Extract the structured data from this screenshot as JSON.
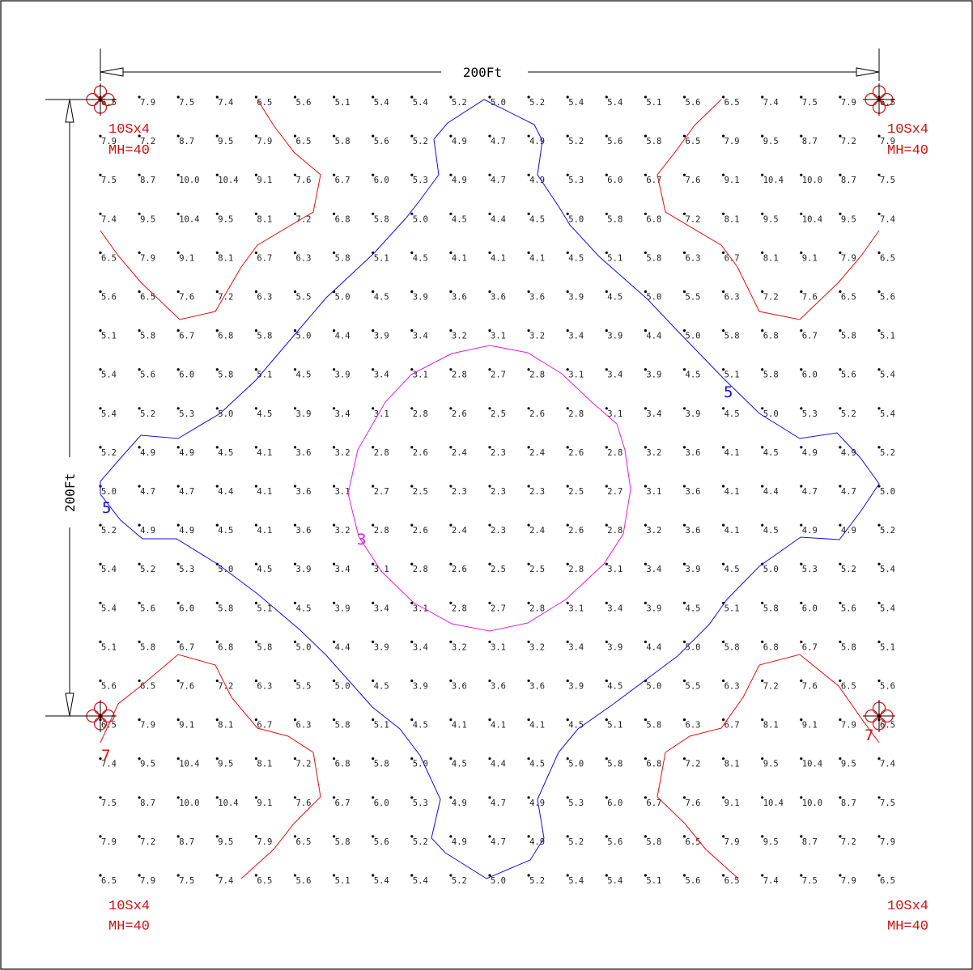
{
  "dimensions": {
    "width_label": "200Ft",
    "height_label": "200Ft"
  },
  "fixtures": [
    {
      "name": "fixture-top-left",
      "type_label": "10Sx4",
      "mh_label": "MH=40"
    },
    {
      "name": "fixture-top-right",
      "type_label": "10Sx4",
      "mh_label": "MH=40"
    },
    {
      "name": "fixture-bottom-left",
      "type_label": "10Sx4",
      "mh_label": "MH=40"
    },
    {
      "name": "fixture-bottom-right",
      "type_label": "10Sx4",
      "mh_label": "MH=40"
    }
  ],
  "contours": [
    {
      "level": "3",
      "color": "#e020e0"
    },
    {
      "level": "5",
      "color": "#1010e0"
    },
    {
      "level": "7",
      "color": "#e01010"
    }
  ],
  "colors": {
    "fixture": "#cc1111",
    "grid_value": "#222222",
    "frame": "#000000"
  },
  "grid_values": [
    [
      "6.5",
      "7.9",
      "7.5",
      "7.4",
      "6.5",
      "5.6",
      "5.1",
      "5.4",
      "5.4",
      "5.2",
      "5.0",
      "5.2",
      "5.4",
      "5.4",
      "5.1",
      "5.6",
      "6.5",
      "7.4",
      "7.5",
      "7.9",
      "6.5"
    ],
    [
      "7.9",
      "7.2",
      "8.7",
      "9.5",
      "7.9",
      "6.5",
      "5.8",
      "5.6",
      "5.2",
      "4.9",
      "4.7",
      "4.9",
      "5.2",
      "5.6",
      "5.8",
      "6.5",
      "7.9",
      "9.5",
      "8.7",
      "7.2",
      "7.9"
    ],
    [
      "7.5",
      "8.7",
      "10.0",
      "10.4",
      "9.1",
      "7.6",
      "6.7",
      "6.0",
      "5.3",
      "4.9",
      "4.7",
      "4.9",
      "5.3",
      "6.0",
      "6.7",
      "7.6",
      "9.1",
      "10.4",
      "10.0",
      "8.7",
      "7.5"
    ],
    [
      "7.4",
      "9.5",
      "10.4",
      "9.5",
      "8.1",
      "7.2",
      "6.8",
      "5.8",
      "5.0",
      "4.5",
      "4.4",
      "4.5",
      "5.0",
      "5.8",
      "6.8",
      "7.2",
      "8.1",
      "9.5",
      "10.4",
      "9.5",
      "7.4"
    ],
    [
      "6.5",
      "7.9",
      "9.1",
      "8.1",
      "6.7",
      "6.3",
      "5.8",
      "5.1",
      "4.5",
      "4.1",
      "4.1",
      "4.1",
      "4.5",
      "5.1",
      "5.8",
      "6.3",
      "6.7",
      "8.1",
      "9.1",
      "7.9",
      "6.5"
    ],
    [
      "5.6",
      "6.5",
      "7.6",
      "7.2",
      "6.3",
      "5.5",
      "5.0",
      "4.5",
      "3.9",
      "3.6",
      "3.6",
      "3.6",
      "3.9",
      "4.5",
      "5.0",
      "5.5",
      "6.3",
      "7.2",
      "7.6",
      "6.5",
      "5.6"
    ],
    [
      "5.1",
      "5.8",
      "6.7",
      "6.8",
      "5.8",
      "5.0",
      "4.4",
      "3.9",
      "3.4",
      "3.2",
      "3.1",
      "3.2",
      "3.4",
      "3.9",
      "4.4",
      "5.0",
      "5.8",
      "6.8",
      "6.7",
      "5.8",
      "5.1"
    ],
    [
      "5.4",
      "5.6",
      "6.0",
      "5.8",
      "5.1",
      "4.5",
      "3.9",
      "3.4",
      "3.1",
      "2.8",
      "2.7",
      "2.8",
      "3.1",
      "3.4",
      "3.9",
      "4.5",
      "5.1",
      "5.8",
      "6.0",
      "5.6",
      "5.4"
    ],
    [
      "5.4",
      "5.2",
      "5.3",
      "5.0",
      "4.5",
      "3.9",
      "3.4",
      "3.1",
      "2.8",
      "2.6",
      "2.5",
      "2.6",
      "2.8",
      "3.1",
      "3.4",
      "3.9",
      "4.5",
      "5.0",
      "5.3",
      "5.2",
      "5.4"
    ],
    [
      "5.2",
      "4.9",
      "4.9",
      "4.5",
      "4.1",
      "3.6",
      "3.2",
      "2.8",
      "2.6",
      "2.4",
      "2.3",
      "2.4",
      "2.6",
      "2.8",
      "3.2",
      "3.6",
      "4.1",
      "4.5",
      "4.9",
      "4.9",
      "5.2"
    ],
    [
      "5.0",
      "4.7",
      "4.7",
      "4.4",
      "4.1",
      "3.6",
      "3.1",
      "2.7",
      "2.5",
      "2.3",
      "2.3",
      "2.3",
      "2.5",
      "2.7",
      "3.1",
      "3.6",
      "4.1",
      "4.4",
      "4.7",
      "4.7",
      "5.0"
    ],
    [
      "5.2",
      "4.9",
      "4.9",
      "4.5",
      "4.1",
      "3.6",
      "3.2",
      "2.8",
      "2.6",
      "2.4",
      "2.3",
      "2.4",
      "2.6",
      "2.8",
      "3.2",
      "3.6",
      "4.1",
      "4.5",
      "4.9",
      "4.9",
      "5.2"
    ],
    [
      "5.4",
      "5.2",
      "5.3",
      "5.0",
      "4.5",
      "3.9",
      "3.4",
      "3.1",
      "2.8",
      "2.6",
      "2.5",
      "2.5",
      "2.8",
      "3.1",
      "3.4",
      "3.9",
      "4.5",
      "5.0",
      "5.3",
      "5.2",
      "5.4"
    ],
    [
      "5.4",
      "5.6",
      "6.0",
      "5.8",
      "5.1",
      "4.5",
      "3.9",
      "3.4",
      "3.1",
      "2.8",
      "2.7",
      "2.8",
      "3.1",
      "3.4",
      "3.9",
      "4.5",
      "5.1",
      "5.8",
      "6.0",
      "5.6",
      "5.4"
    ],
    [
      "5.1",
      "5.8",
      "6.7",
      "6.8",
      "5.8",
      "5.0",
      "4.4",
      "3.9",
      "3.4",
      "3.2",
      "3.1",
      "3.2",
      "3.4",
      "3.9",
      "4.4",
      "5.0",
      "5.8",
      "6.8",
      "6.7",
      "5.8",
      "5.1"
    ],
    [
      "5.6",
      "6.5",
      "7.6",
      "7.2",
      "6.3",
      "5.5",
      "5.0",
      "4.5",
      "3.9",
      "3.6",
      "3.6",
      "3.6",
      "3.9",
      "4.5",
      "5.0",
      "5.5",
      "6.3",
      "7.2",
      "7.6",
      "6.5",
      "5.6"
    ],
    [
      "6.5",
      "7.9",
      "9.1",
      "8.1",
      "6.7",
      "6.3",
      "5.8",
      "5.1",
      "4.5",
      "4.1",
      "4.1",
      "4.1",
      "4.5",
      "5.1",
      "5.8",
      "6.3",
      "6.7",
      "8.1",
      "9.1",
      "7.9",
      "6.5"
    ],
    [
      "7.4",
      "9.5",
      "10.4",
      "9.5",
      "8.1",
      "7.2",
      "6.8",
      "5.8",
      "5.0",
      "4.5",
      "4.4",
      "4.5",
      "5.0",
      "5.8",
      "6.8",
      "7.2",
      "8.1",
      "9.5",
      "10.4",
      "9.5",
      "7.4"
    ],
    [
      "7.5",
      "8.7",
      "10.0",
      "10.4",
      "9.1",
      "7.6",
      "6.7",
      "6.0",
      "5.3",
      "4.9",
      "4.7",
      "4.9",
      "5.3",
      "6.0",
      "6.7",
      "7.6",
      "9.1",
      "10.4",
      "10.0",
      "8.7",
      "7.5"
    ],
    [
      "7.9",
      "7.2",
      "8.7",
      "9.5",
      "7.9",
      "6.5",
      "5.8",
      "5.6",
      "5.2",
      "4.9",
      "4.7",
      "4.9",
      "5.2",
      "5.6",
      "5.8",
      "6.5",
      "7.9",
      "9.5",
      "8.7",
      "7.2",
      "7.9"
    ],
    [
      "6.5",
      "7.9",
      "7.5",
      "7.4",
      "6.5",
      "5.6",
      "5.1",
      "5.4",
      "5.4",
      "5.2",
      "5.0",
      "5.2",
      "5.4",
      "5.4",
      "5.1",
      "5.6",
      "6.5",
      "7.4",
      "7.5",
      "7.9",
      "6.5"
    ]
  ]
}
